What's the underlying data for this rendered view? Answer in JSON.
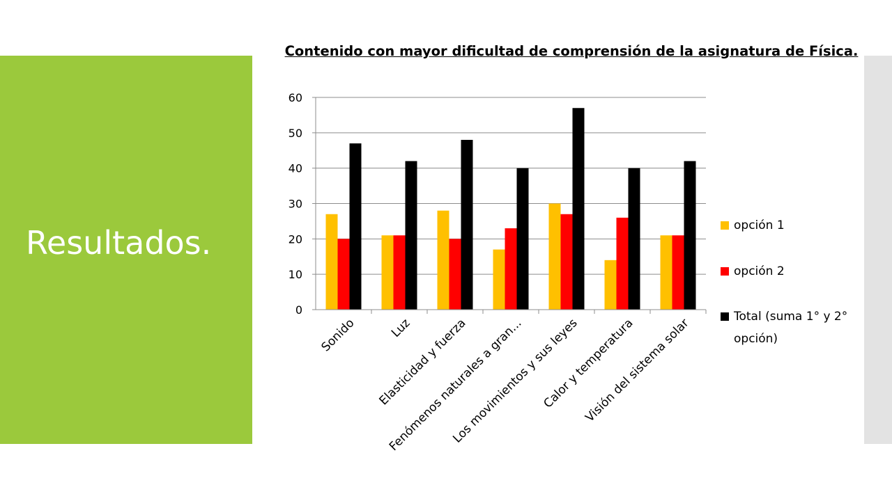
{
  "slide": {
    "title": "Resultados.",
    "colors": {
      "panel": "#9bc93c",
      "strip": "#e3e3e3"
    }
  },
  "chart_data": {
    "type": "bar",
    "title": "Contenido con mayor dificultad de comprensión de la asignatura de Física.",
    "categories": [
      "Sonido",
      "Luz",
      "Elasticidad y fuerza",
      "Fenómenos naturales a gran...",
      "Los movimientos y sus leyes",
      "Calor y temperatura",
      "Visión del sistema solar"
    ],
    "series": [
      {
        "name": "opción 1",
        "color": "#ffc000",
        "values": [
          27,
          21,
          28,
          17,
          30,
          14,
          21
        ]
      },
      {
        "name": "opción 2",
        "color": "#ff0000",
        "values": [
          20,
          21,
          20,
          23,
          27,
          26,
          21
        ]
      },
      {
        "name": "Total (suma 1° y 2° opción)",
        "color": "#000000",
        "values": [
          47,
          42,
          48,
          40,
          57,
          40,
          42
        ]
      }
    ],
    "ylim": [
      0,
      60
    ],
    "yticks": [
      0,
      10,
      20,
      30,
      40,
      50,
      60
    ],
    "ytick_labels": [
      "0",
      "10",
      "20",
      "30",
      "40",
      "50",
      "60"
    ],
    "grid": true,
    "legend_position": "right"
  }
}
